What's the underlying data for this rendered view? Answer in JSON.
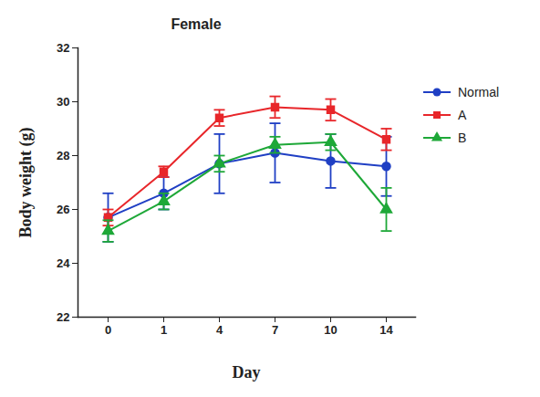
{
  "chart_data": {
    "type": "line",
    "title": "Female",
    "x_label": "Day",
    "y_label": "Body weight (g)",
    "categories": [
      "0",
      "1",
      "4",
      "7",
      "10",
      "14"
    ],
    "series": [
      {
        "name": "Normal",
        "color": "#1f3fc4",
        "marker": "circle",
        "values": [
          25.7,
          26.6,
          27.7,
          28.1,
          27.8,
          27.6
        ],
        "errors": [
          0.9,
          0.6,
          1.1,
          1.1,
          1.0,
          1.1
        ]
      },
      {
        "name": "A",
        "color": "#e8262a",
        "marker": "square",
        "values": [
          25.7,
          27.4,
          29.4,
          29.8,
          29.7,
          28.6
        ],
        "errors": [
          0.3,
          0.2,
          0.3,
          0.4,
          0.4,
          0.4
        ]
      },
      {
        "name": "B",
        "color": "#1ea838",
        "marker": "triangle",
        "values": [
          25.2,
          26.3,
          27.7,
          28.4,
          28.5,
          26.0
        ],
        "errors": [
          0.4,
          0.3,
          0.3,
          0.3,
          0.3,
          0.8
        ]
      }
    ],
    "ylim": [
      22,
      32
    ],
    "yticks": [
      22,
      24,
      26,
      28,
      30,
      32
    ],
    "grid": false,
    "legend": "right"
  }
}
